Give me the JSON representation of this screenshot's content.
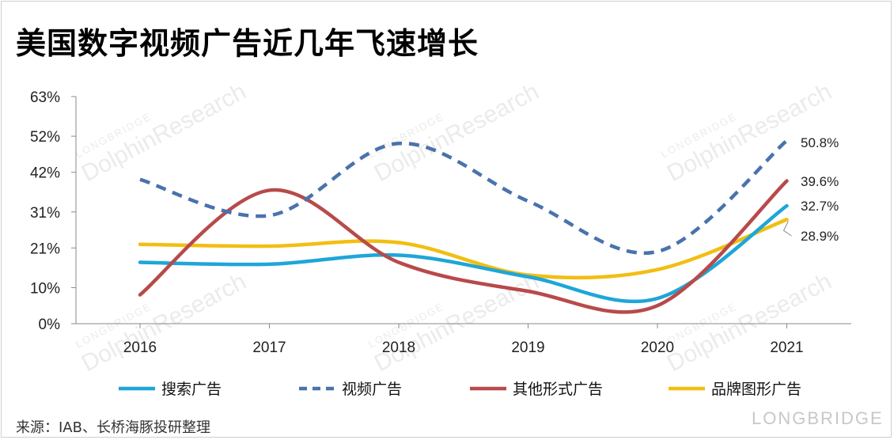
{
  "title": "美国数字视频广告近几年飞速增长",
  "source": "来源：IAB、长桥海豚投研整理",
  "watermark": {
    "text": "DolphinResearch",
    "sub": "LONGBRIDGE",
    "brand": "LONGBRIDGE"
  },
  "colors": {
    "search": "#1ea6d8",
    "video": "#4a72ad",
    "other": "#b84a4a",
    "brand": "#f2be12"
  },
  "chart_data": {
    "type": "line",
    "categories": [
      "2016",
      "2017",
      "2018",
      "2019",
      "2020",
      "2021"
    ],
    "ylim": [
      0,
      63
    ],
    "yticks": [
      0,
      10,
      21,
      31,
      42,
      52,
      63
    ],
    "ytick_labels": [
      "0%",
      "10%",
      "21%",
      "31%",
      "42%",
      "52%",
      "63%"
    ],
    "series": [
      {
        "name": "搜索广告",
        "key": "search",
        "dash": false,
        "values": [
          17,
          16.5,
          19,
          13,
          7,
          32.7
        ]
      },
      {
        "name": "视频广告",
        "key": "video",
        "dash": true,
        "values": [
          40,
          30,
          50,
          34,
          20,
          50.8
        ]
      },
      {
        "name": "其他形式广告",
        "key": "other",
        "dash": false,
        "values": [
          8,
          37,
          17,
          9,
          5,
          39.6
        ]
      },
      {
        "name": "品牌图形广告",
        "key": "brand",
        "dash": false,
        "values": [
          22,
          21.5,
          22.5,
          13.5,
          15,
          28.9
        ]
      }
    ],
    "annotations": [
      {
        "series": "video",
        "text": "50.8%"
      },
      {
        "series": "other",
        "text": "39.6%"
      },
      {
        "series": "search",
        "text": "32.7%"
      },
      {
        "series": "brand",
        "text": "28.9%"
      }
    ],
    "legend_position": "bottom"
  }
}
